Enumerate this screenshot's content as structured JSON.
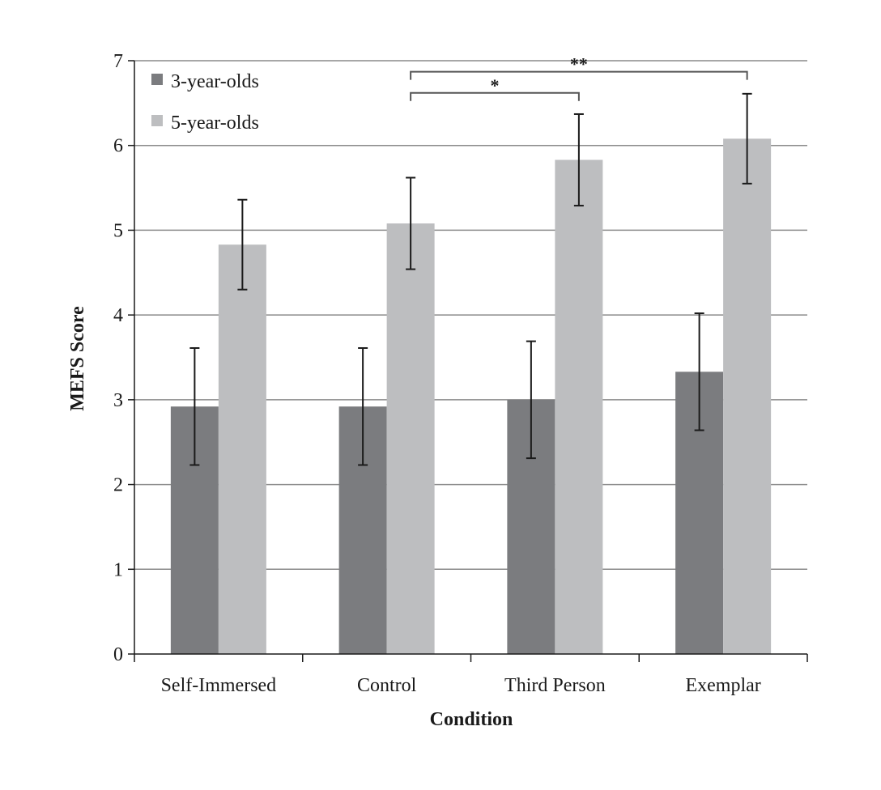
{
  "chart_data": {
    "type": "bar",
    "title": "",
    "xlabel": "Condition",
    "ylabel": "MEFS Score",
    "ylim": [
      0,
      7
    ],
    "yticks": [
      0,
      1,
      2,
      3,
      4,
      5,
      6,
      7
    ],
    "grid": true,
    "legend_position": "top-left",
    "categories": [
      "Self-Immersed",
      "Control",
      "Third Person",
      "Exemplar"
    ],
    "series": [
      {
        "name": "3-year-olds",
        "color": "#7b7c7f",
        "values": [
          2.92,
          2.92,
          3.0,
          3.33
        ],
        "error": [
          0.69,
          0.69,
          0.69,
          0.69
        ]
      },
      {
        "name": "5-year-olds",
        "color": "#bdbec0",
        "values": [
          4.83,
          5.08,
          5.83,
          6.08
        ],
        "error": [
          0.53,
          0.54,
          0.54,
          0.53
        ]
      }
    ],
    "significance": [
      {
        "from": "Control",
        "to": "Third Person",
        "label": "*"
      },
      {
        "from": "Control",
        "to": "Exemplar",
        "label": "**"
      }
    ]
  }
}
